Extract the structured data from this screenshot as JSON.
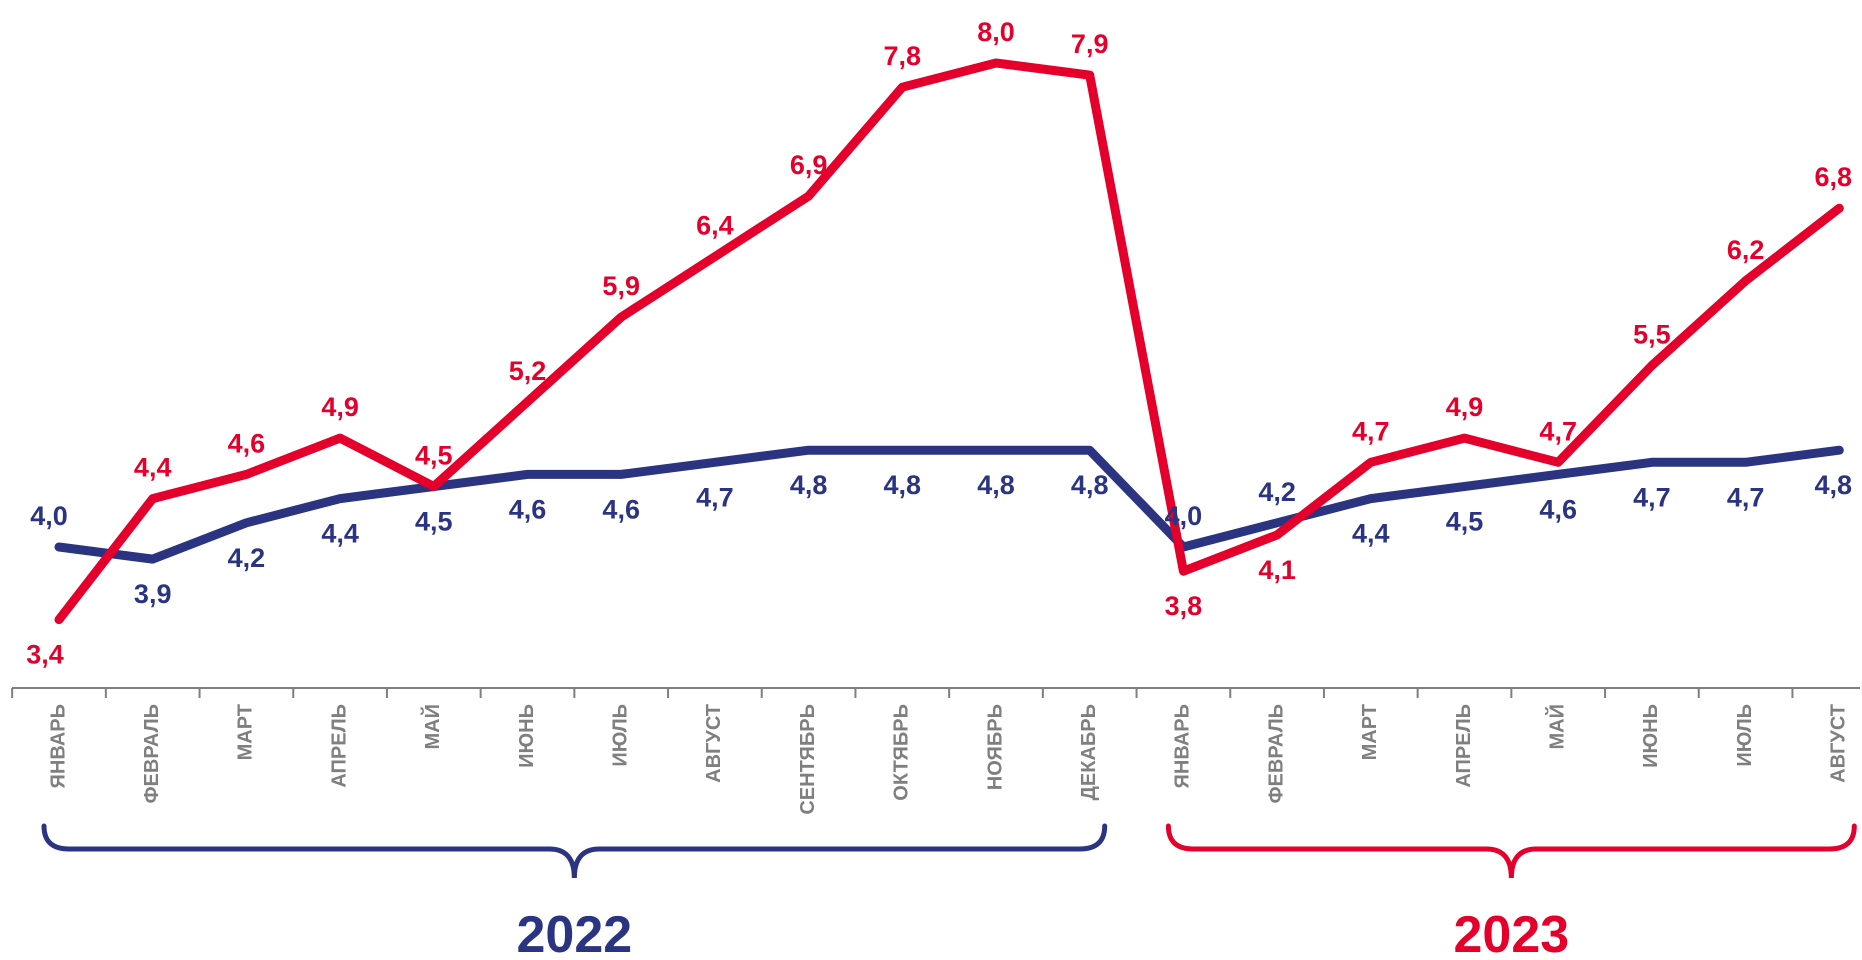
{
  "chart_data": {
    "type": "line",
    "categories": [
      "ЯНВАРЬ",
      "ФЕВРАЛЬ",
      "МАРТ",
      "АПРЕЛЬ",
      "МАЙ",
      "ИЮНЬ",
      "ИЮЛЬ",
      "АВГУСТ",
      "СЕНТЯБРЬ",
      "ОКТЯБРЬ",
      "НОЯБРЬ",
      "ДЕКАБРЬ",
      "ЯНВАРЬ",
      "ФЕВРАЛЬ",
      "МАРТ",
      "АПРЕЛЬ",
      "МАЙ",
      "ИЮНЬ",
      "ИЮЛЬ",
      "АВГУСТ"
    ],
    "series": [
      {
        "color": "#e4002b",
        "values": [
          3.4,
          4.4,
          4.6,
          4.9,
          4.5,
          5.2,
          5.9,
          6.4,
          6.9,
          7.8,
          8.0,
          7.9,
          3.8,
          4.1,
          4.7,
          4.9,
          4.7,
          5.5,
          6.2,
          6.8
        ],
        "labels": [
          "3,4",
          "4,4",
          "4,6",
          "4,9",
          "4,5",
          "5,2",
          "5,9",
          "6,4",
          "6,9",
          "7,8",
          "8,0",
          "7,9",
          "3,8",
          "4,1",
          "4,7",
          "4,9",
          "4,7",
          "5,5",
          "6,2",
          "6,8"
        ]
      },
      {
        "color": "#2b3480",
        "values": [
          4.0,
          3.9,
          4.2,
          4.4,
          4.5,
          4.6,
          4.6,
          4.7,
          4.8,
          4.8,
          4.8,
          4.8,
          4.0,
          4.2,
          4.4,
          4.5,
          4.6,
          4.7,
          4.7,
          4.8
        ],
        "labels": [
          "4,0",
          "3,9",
          "4,2",
          "4,4",
          "4,5",
          "4,6",
          "4,6",
          "4,7",
          "4,8",
          "4,8",
          "4,8",
          "4,8",
          "4,0",
          "4,2",
          "4,4",
          "4,5",
          "4,6",
          "4,7",
          "4,7",
          "4,8"
        ]
      }
    ],
    "groups": [
      {
        "label": "2022",
        "color": "#2b3480",
        "from": 0,
        "to": 11
      },
      {
        "label": "2023",
        "color": "#e4002b",
        "from": 12,
        "to": 19
      }
    ],
    "ylim": [
      3.0,
      8.3
    ],
    "grid": false,
    "legend": "none"
  }
}
